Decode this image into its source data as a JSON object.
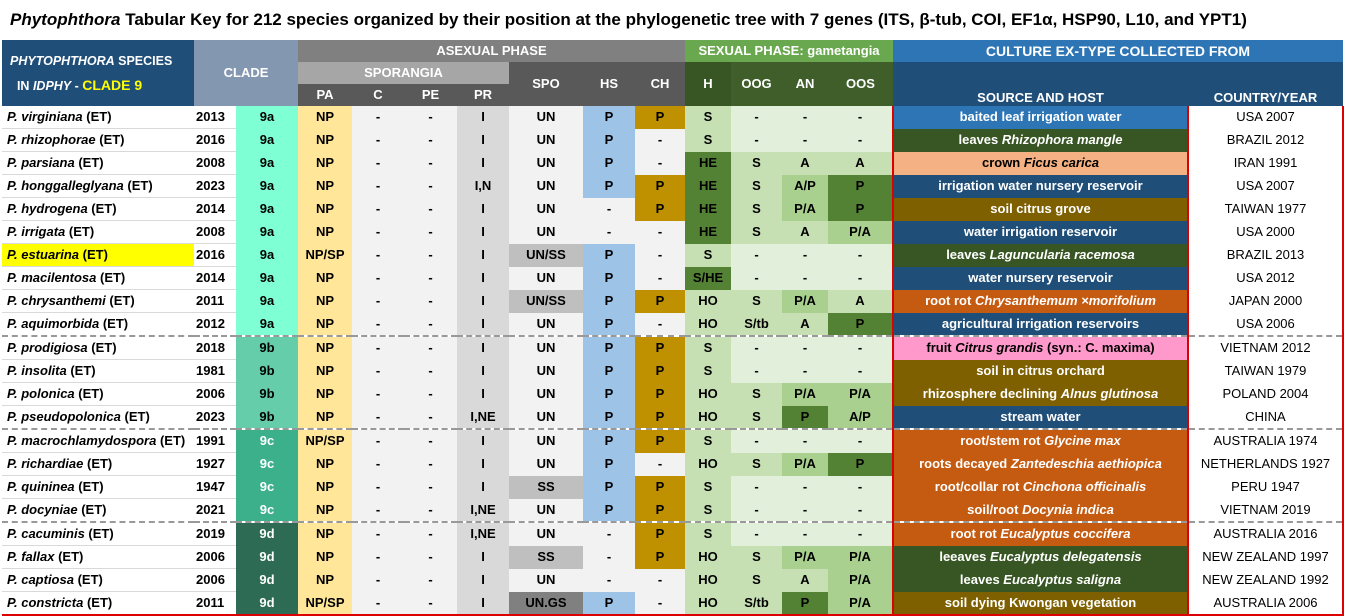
{
  "title": {
    "italic": "Phytophthora",
    "rest": " Tabular Key for 212 species organized by their position at the phylogenetic tree with 7 genes (ITS, β-tub, COI, EF1α, HSP90, L10, and YPT1)"
  },
  "header": {
    "species_line1_italic": "PHYTOPHTHORA",
    "species_line1_rest": " SPECIES",
    "species_line2_pre": "IN ",
    "species_line2_italic": "IDPHY",
    "species_line2_dash": " - ",
    "species_line2_clade": "CLADE 9",
    "clade": "CLADE",
    "asexual": "ASEXUAL PHASE",
    "sporangia": "SPORANGIA",
    "sexual": "SEXUAL PHASE: gametangia",
    "culture": "CULTURE EX-TYPE COLLECTED FROM",
    "pa": "PA",
    "c": "C",
    "pe": "PE",
    "pr": "PR",
    "spo": "SPO",
    "hs": "HS",
    "ch": "CH",
    "h": "H",
    "oog": "OOG",
    "an": "AN",
    "oos": "OOS",
    "source": "SOURCE AND HOST",
    "country": "COUNTRY/YEAR"
  },
  "rows": [
    {
      "sp": "P. virginiana",
      "et": " (ET)",
      "yr": "2013",
      "clade": "9a",
      "pa": "NP",
      "c": "-",
      "pe": "-",
      "pr": "I",
      "spo": "UN",
      "hs": "P",
      "ch": "P",
      "h": "S",
      "oog": "-",
      "an": "-",
      "oos": "-",
      "src_pre": "baited leaf irrigation water",
      "src_it": "",
      "src_post": "",
      "src_col": "src-blue",
      "cty": "USA 2007"
    },
    {
      "sp": "P. rhizophorae",
      "et": " (ET)",
      "yr": "2016",
      "clade": "9a",
      "pa": "NP",
      "c": "-",
      "pe": "-",
      "pr": "I",
      "spo": "UN",
      "hs": "P",
      "ch": "-",
      "h": "S",
      "oog": "-",
      "an": "-",
      "oos": "-",
      "src_pre": "leaves ",
      "src_it": "Rhizophora mangle",
      "src_post": "",
      "src_col": "src-dgreen",
      "cty": "BRAZIL 2012"
    },
    {
      "sp": "P. parsiana",
      "et": " (ET)",
      "yr": "2008",
      "clade": "9a",
      "pa": "NP",
      "c": "-",
      "pe": "-",
      "pr": "I",
      "spo": "UN",
      "hs": "P",
      "ch": "-",
      "h": "HE",
      "oog": "S",
      "an": "A",
      "oos": "A",
      "src_pre": "crown ",
      "src_it": "Ficus carica",
      "src_post": "",
      "src_col": "src-peach",
      "cty": "IRAN 1991"
    },
    {
      "sp": "P. honggalleglyana",
      "et": " (ET)",
      "yr": "2023",
      "clade": "9a",
      "pa": "NP",
      "c": "-",
      "pe": "-",
      "pr": "I,N",
      "spo": "UN",
      "hs": "P",
      "ch": "P",
      "h": "HE",
      "oog": "S",
      "an": "A/P",
      "oos": "P",
      "src_pre": "irrigation water nursery reservoir",
      "src_it": "",
      "src_post": "",
      "src_col": "src-navy",
      "cty": "USA 2007"
    },
    {
      "sp": "P. hydrogena",
      "et": " (ET)",
      "yr": "2014",
      "clade": "9a",
      "pa": "NP",
      "c": "-",
      "pe": "-",
      "pr": "I",
      "spo": "UN",
      "hs": "-",
      "ch": "P",
      "h": "HE",
      "oog": "S",
      "an": "P/A",
      "oos": "P",
      "src_pre": "soil citrus grove",
      "src_it": "",
      "src_post": "",
      "src_col": "src-brown",
      "cty": "TAIWAN 1977"
    },
    {
      "sp": "P. irrigata",
      "et": " (ET)",
      "yr": "2008",
      "clade": "9a",
      "pa": "NP",
      "c": "-",
      "pe": "-",
      "pr": "I",
      "spo": "UN",
      "hs": "-",
      "ch": "-",
      "h": "HE",
      "oog": "S",
      "an": "A",
      "oos": "P/A",
      "src_pre": "water irrigation reservoir",
      "src_it": "",
      "src_post": "",
      "src_col": "src-navy",
      "cty": "USA 2000"
    },
    {
      "sp": "P. estuarina",
      "et": " (ET)",
      "yr": "2016",
      "clade": "9a",
      "pa": "NP/SP",
      "c": "-",
      "pe": "-",
      "pr": "I",
      "spo": "UN/SS",
      "hs": "P",
      "ch": "-",
      "h": "S",
      "oog": "-",
      "an": "-",
      "oos": "-",
      "src_pre": "leaves ",
      "src_it": "Laguncularia racemosa",
      "src_post": "",
      "src_col": "src-dgreen",
      "cty": "BRAZIL 2013",
      "hl": true
    },
    {
      "sp": "P. macilentosa",
      "et": " (ET)",
      "yr": "2014",
      "clade": "9a",
      "pa": "NP",
      "c": "-",
      "pe": "-",
      "pr": "I",
      "spo": "UN",
      "hs": "P",
      "ch": "-",
      "h": "S/HE",
      "oog": "-",
      "an": "-",
      "oos": "-",
      "src_pre": "water nursery reservoir",
      "src_it": "",
      "src_post": "",
      "src_col": "src-navy",
      "cty": "USA 2012"
    },
    {
      "sp": "P. chrysanthemi",
      "et": " (ET)",
      "yr": "2011",
      "clade": "9a",
      "pa": "NP",
      "c": "-",
      "pe": "-",
      "pr": "I",
      "spo": "UN/SS",
      "hs": "P",
      "ch": "P",
      "h": "HO",
      "oog": "S",
      "an": "P/A",
      "oos": "A",
      "src_pre": "root rot ",
      "src_it": "Chrysanthemum ×morifolium",
      "src_post": "",
      "src_col": "src-orange",
      "cty": "JAPAN 2000"
    },
    {
      "sp": "P. aquimorbida",
      "et": " (ET)",
      "yr": "2012",
      "clade": "9a",
      "pa": "NP",
      "c": "-",
      "pe": "-",
      "pr": "I",
      "spo": "UN",
      "hs": "P",
      "ch": "-",
      "h": "HO",
      "oog": "S/tb",
      "an": "A",
      "oos": "P",
      "src_pre": "agricultural irrigation reservoirs",
      "src_it": "",
      "src_post": "",
      "src_col": "src-navy",
      "cty": "USA 2006"
    },
    {
      "sp": "P. prodigiosa",
      "et": " (ET)",
      "yr": "2018",
      "clade": "9b",
      "pa": "NP",
      "c": "-",
      "pe": "-",
      "pr": "I",
      "spo": "UN",
      "hs": "P",
      "ch": "P",
      "h": "S",
      "oog": "-",
      "an": "-",
      "oos": "-",
      "src_pre": "fruit ",
      "src_it": "Citrus grandis",
      "src_post": " (syn.: C. maxima)",
      "src_col": "src-pink",
      "cty": "VIETNAM 2012",
      "sep": true
    },
    {
      "sp": "P. insolita",
      "et": " (ET)",
      "yr": "1981",
      "clade": "9b",
      "pa": "NP",
      "c": "-",
      "pe": "-",
      "pr": "I",
      "spo": "UN",
      "hs": "P",
      "ch": "P",
      "h": "S",
      "oog": "-",
      "an": "-",
      "oos": "-",
      "src_pre": "soil in citrus orchard",
      "src_it": "",
      "src_post": "",
      "src_col": "src-brown",
      "cty": "TAIWAN 1979"
    },
    {
      "sp": "P. polonica",
      "et": " (ET)",
      "yr": "2006",
      "clade": "9b",
      "pa": "NP",
      "c": "-",
      "pe": "-",
      "pr": "I",
      "spo": "UN",
      "hs": "P",
      "ch": "P",
      "h": "HO",
      "oog": "S",
      "an": "P/A",
      "oos": "P/A",
      "src_pre": "rhizosphere declining ",
      "src_it": "Alnus glutinosa",
      "src_post": "",
      "src_col": "src-brown",
      "cty": "POLAND 2004"
    },
    {
      "sp": "P. pseudopolonica",
      "et": " (ET)",
      "yr": "2023",
      "clade": "9b",
      "pa": "NP",
      "c": "-",
      "pe": "-",
      "pr": "I,NE",
      "spo": "UN",
      "hs": "P",
      "ch": "P",
      "h": "HO",
      "oog": "S",
      "an": "P",
      "oos": "A/P",
      "src_pre": "stream water",
      "src_it": "",
      "src_post": "",
      "src_col": "src-navy",
      "cty": "CHINA"
    },
    {
      "sp": "P. macrochlamydospora",
      "et": " (ET)",
      "yr": "1991",
      "clade": "9c",
      "pa": "NP/SP",
      "c": "-",
      "pe": "-",
      "pr": "I",
      "spo": "UN",
      "hs": "P",
      "ch": "P",
      "h": "S",
      "oog": "-",
      "an": "-",
      "oos": "-",
      "src_pre": "root/stem rot ",
      "src_it": "Glycine max",
      "src_post": "",
      "src_col": "src-orange",
      "cty": "AUSTRALIA 1974",
      "sep": true
    },
    {
      "sp": "P. richardiae",
      "et": " (ET)",
      "yr": "1927",
      "clade": "9c",
      "pa": "NP",
      "c": "-",
      "pe": "-",
      "pr": "I",
      "spo": "UN",
      "hs": "P",
      "ch": "-",
      "h": "HO",
      "oog": "S",
      "an": "P/A",
      "oos": "P",
      "src_pre": "roots decayed ",
      "src_it": "Zantedeschia aethiopica",
      "src_post": "",
      "src_col": "src-orange",
      "cty": "NETHERLANDS 1927"
    },
    {
      "sp": "P. quininea",
      "et": " (ET)",
      "yr": "1947",
      "clade": "9c",
      "pa": "NP",
      "c": "-",
      "pe": "-",
      "pr": "I",
      "spo": "SS",
      "hs": "P",
      "ch": "P",
      "h": "S",
      "oog": "-",
      "an": "-",
      "oos": "-",
      "src_pre": "root/collar rot ",
      "src_it": "Cinchona officinalis",
      "src_post": "",
      "src_col": "src-orange",
      "cty": "PERU 1947"
    },
    {
      "sp": "P. docyniae",
      "et": " (ET)",
      "yr": "2021",
      "clade": "9c",
      "pa": "NP",
      "c": "-",
      "pe": "-",
      "pr": "I,NE",
      "spo": "UN",
      "hs": "P",
      "ch": "P",
      "h": "S",
      "oog": "-",
      "an": "-",
      "oos": "-",
      "src_pre": "soil/root ",
      "src_it": "Docynia indica",
      "src_post": "",
      "src_col": "src-orange",
      "cty": "VIETNAM 2019"
    },
    {
      "sp": "P. cacuminis",
      "et": " (ET)",
      "yr": "2019",
      "clade": "9d",
      "pa": "NP",
      "c": "-",
      "pe": "-",
      "pr": "I,NE",
      "spo": "UN",
      "hs": "-",
      "ch": "P",
      "h": "S",
      "oog": "-",
      "an": "-",
      "oos": "-",
      "src_pre": "root rot ",
      "src_it": "Eucalyptus coccifera",
      "src_post": "",
      "src_col": "src-orange",
      "cty": "AUSTRALIA 2016",
      "sep": true
    },
    {
      "sp": "P. fallax",
      "et": " (ET)",
      "yr": "2006",
      "clade": "9d",
      "pa": "NP",
      "c": "-",
      "pe": "-",
      "pr": "I",
      "spo": "SS",
      "hs": "-",
      "ch": "P",
      "h": "HO",
      "oog": "S",
      "an": "P/A",
      "oos": "P/A",
      "src_pre": "leeaves ",
      "src_it": "Eucalyptus delegatensis",
      "src_post": "",
      "src_col": "src-dgreen",
      "cty": "NEW ZEALAND 1997"
    },
    {
      "sp": "P. captiosa",
      "et": " (ET)",
      "yr": "2006",
      "clade": "9d",
      "pa": "NP",
      "c": "-",
      "pe": "-",
      "pr": "I",
      "spo": "UN",
      "hs": "-",
      "ch": "-",
      "h": "HO",
      "oog": "S",
      "an": "A",
      "oos": "P/A",
      "src_pre": "leaves ",
      "src_it": "Eucalyptus saligna",
      "src_post": "",
      "src_col": "src-dgreen",
      "cty": "NEW ZEALAND 1992"
    },
    {
      "sp": "P. constricta",
      "et": " (ET)",
      "yr": "2011",
      "clade": "9d",
      "pa": "NP/SP",
      "c": "-",
      "pe": "-",
      "pr": "I",
      "spo": "UN.GS",
      "hs": "P",
      "ch": "-",
      "h": "HO",
      "oog": "S/tb",
      "an": "P",
      "oos": "P/A",
      "src_pre": "soil dying Kwongan vegetation",
      "src_it": "",
      "src_post": "",
      "src_col": "src-brown",
      "cty": "AUSTRALIA 2006"
    }
  ]
}
